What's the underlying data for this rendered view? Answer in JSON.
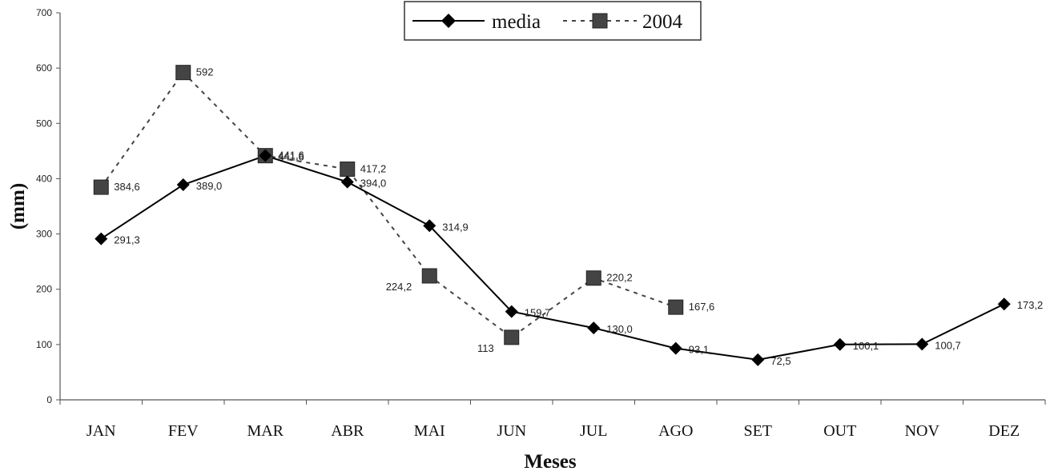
{
  "chart_data": {
    "type": "line",
    "title": "",
    "xlabel": "Meses",
    "ylabel": "(mm)",
    "categories": [
      "JAN",
      "FEV",
      "MAR",
      "ABR",
      "MAI",
      "JUN",
      "JUL",
      "AGO",
      "SET",
      "OUT",
      "NOV",
      "DEZ"
    ],
    "ylim": [
      0,
      700
    ],
    "yticks": [
      0,
      100,
      200,
      300,
      400,
      500,
      600,
      700
    ],
    "grid": false,
    "legend_position": "top-center",
    "series": [
      {
        "name": "media",
        "marker": "diamond",
        "line_style": "solid",
        "color": "#000000",
        "values": [
          291.3,
          389.0,
          441.6,
          394.0,
          314.9,
          159.7,
          130.0,
          93.1,
          72.5,
          100.1,
          100.7,
          173.2
        ],
        "labels": [
          "291,3",
          "389,0",
          "441,6",
          "394,0",
          "314,9",
          "159,7",
          "130,0",
          "93,1",
          "72,5",
          "100,1",
          "100,7",
          "173,2"
        ]
      },
      {
        "name": "2004",
        "marker": "square",
        "line_style": "dashed",
        "color": "#444444",
        "values": [
          384.6,
          592,
          441.6,
          417.2,
          224.2,
          113,
          220.2,
          167.6,
          null,
          null,
          null,
          null
        ],
        "labels": [
          "384,6",
          "592",
          "441,6",
          "417,2",
          "224,2",
          "113",
          "220,2",
          "167,6",
          null,
          null,
          null,
          null
        ]
      }
    ]
  }
}
